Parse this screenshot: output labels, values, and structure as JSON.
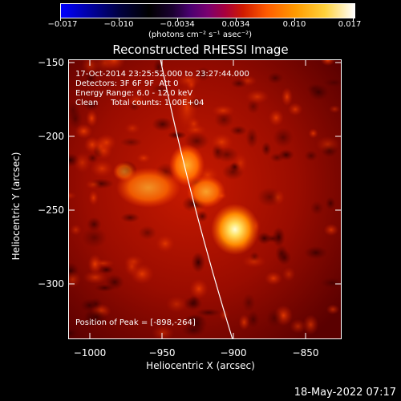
{
  "colorbar": {
    "ticks": [
      "−0.017",
      "−0.010",
      "−0.0034",
      "0.0034",
      "0.010",
      "0.017"
    ],
    "units": "(photons cm⁻² s⁻¹ asec⁻²)",
    "colormap": [
      "#0000ff",
      "#000000",
      "#7a0070",
      "#d01a00",
      "#ff9b00",
      "#ffffff"
    ]
  },
  "title": "Reconstructed RHESSI Image",
  "info": {
    "line1": "17-Oct-2014 23:25:52.000 to 23:27:44.000",
    "line2": "Detectors: 3F 6F 9F  Att 0",
    "line3": "Energy Range: 6.0 - 12.0 keV",
    "line4": "Clean     Total counts: 1.00E+04",
    "peak": "Position of Peak = [-898,-264]"
  },
  "axes": {
    "xlabel": "Heliocentric X (arcsec)",
    "ylabel": "Heliocentric Y (arcsec)",
    "xticks": [
      "−1000",
      "−950",
      "−900",
      "−850"
    ],
    "yticks": [
      "−150",
      "−200",
      "−250",
      "−300"
    ]
  },
  "datestamp": "18-May-2022 07:17"
}
